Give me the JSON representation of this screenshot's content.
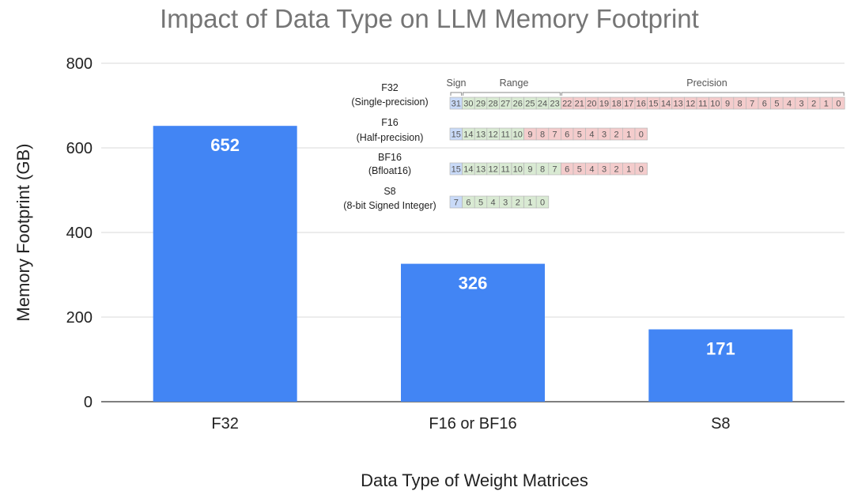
{
  "chart_data": {
    "type": "bar",
    "title": "Impact of Data Type on LLM Memory Footprint",
    "xlabel": "Data Type of Weight Matrices",
    "ylabel": "Memory Footprint (GB)",
    "ylim": [
      0,
      800
    ],
    "yticks": [
      0,
      200,
      400,
      600,
      800
    ],
    "grid": true,
    "categories": [
      "F32",
      "F16 or BF16",
      "S8"
    ],
    "values": [
      652,
      326,
      171
    ],
    "bar_color": "#4285f4"
  },
  "inset": {
    "segment_labels": {
      "sign": "Sign",
      "range": "Range",
      "precision": "Precision"
    },
    "colors": {
      "sign": "#c9daf8",
      "range": "#d9ead3",
      "precision": "#f4cccc",
      "border": "#b7b7b7"
    },
    "formats": [
      {
        "name": "F32",
        "subname": "(Single-precision)",
        "sign_bits": 1,
        "range_bits": 8,
        "precision_bits": 23
      },
      {
        "name": "F16",
        "subname": "(Half-precision)",
        "sign_bits": 1,
        "range_bits": 5,
        "precision_bits": 10
      },
      {
        "name": "BF16",
        "subname": "(Bfloat16)",
        "sign_bits": 1,
        "range_bits": 8,
        "precision_bits": 7
      },
      {
        "name": "S8",
        "subname": "(8-bit Signed Integer)",
        "sign_bits": 1,
        "range_bits": 7,
        "precision_bits": 0
      }
    ]
  }
}
